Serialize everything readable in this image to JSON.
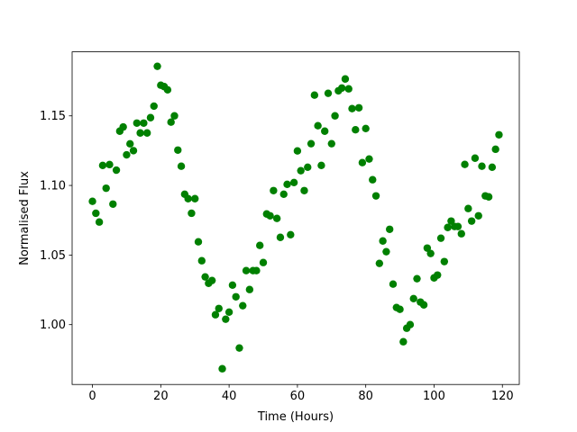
{
  "chart_data": {
    "type": "scatter",
    "xlabel": "Time (Hours)",
    "ylabel": "Normalised Flux",
    "color": "#008000",
    "xlim": [
      -5.95,
      124.95
    ],
    "ylim": [
      0.957,
      1.196
    ],
    "xticks": [
      0,
      20,
      40,
      60,
      80,
      100,
      120
    ],
    "yticks": [
      {
        "value": 1.0,
        "label": "1.00"
      },
      1.05,
      {
        "value": 1.1,
        "label": "1.10"
      },
      1.15
    ],
    "grid": false,
    "x": [
      0,
      1,
      2,
      3,
      4,
      5,
      6,
      7,
      8,
      9,
      10,
      11,
      12,
      13,
      14,
      15,
      16,
      17,
      18,
      19,
      20,
      21,
      22,
      23,
      24,
      25,
      26,
      27,
      28,
      29,
      30,
      31,
      32,
      33,
      34,
      35,
      36,
      37,
      38,
      39,
      40,
      41,
      42,
      43,
      44,
      45,
      46,
      47,
      48,
      49,
      50,
      51,
      52,
      53,
      54,
      55,
      56,
      57,
      58,
      59,
      60,
      61,
      62,
      63,
      64,
      65,
      66,
      67,
      68,
      69,
      70,
      71,
      72,
      73,
      74,
      75,
      76,
      77,
      78,
      79,
      80,
      81,
      82,
      83,
      84,
      85,
      86,
      87,
      88,
      89,
      90,
      91,
      92,
      93,
      94,
      95,
      96,
      97,
      98,
      99,
      100,
      101,
      102,
      103,
      104,
      105,
      106,
      107,
      108,
      109,
      110,
      111,
      112,
      113,
      114,
      115,
      116,
      117,
      118,
      119
    ],
    "values": [
      1.0886,
      1.08,
      1.0737,
      1.1144,
      1.098,
      1.115,
      1.0866,
      1.111,
      1.139,
      1.142,
      1.122,
      1.1299,
      1.125,
      1.1448,
      1.1377,
      1.1448,
      1.1377,
      1.1487,
      1.157,
      1.1856,
      1.172,
      1.171,
      1.1687,
      1.1455,
      1.15,
      1.1254,
      1.1138,
      1.0937,
      1.0905,
      1.08,
      1.0905,
      1.0595,
      1.0459,
      1.0343,
      1.0297,
      1.0317,
      1.0071,
      1.0116,
      0.9683,
      1.0039,
      1.009,
      1.0284,
      1.02,
      0.9832,
      1.0136,
      1.0388,
      1.0252,
      1.0388,
      1.0388,
      1.0569,
      1.0446,
      1.0795,
      1.0782,
      1.0963,
      1.0763,
      1.0627,
      1.0937,
      1.1008,
      1.0646,
      1.1021,
      1.1248,
      1.1106,
      1.0963,
      1.1131,
      1.13,
      1.1649,
      1.1429,
      1.1144,
      1.139,
      1.1662,
      1.13,
      1.15,
      1.168,
      1.17,
      1.1765,
      1.1694,
      1.1552,
      1.14,
      1.1558,
      1.1164,
      1.1409,
      1.119,
      1.1041,
      1.0925,
      1.044,
      1.0601,
      1.0524,
      1.0685,
      1.0291,
      1.0123,
      1.011,
      0.9877,
      0.9974,
      1.0,
      1.0187,
      1.033,
      1.0162,
      1.0142,
      1.055,
      1.0511,
      1.0336,
      1.0356,
      1.0621,
      1.0453,
      1.0698,
      1.0744,
      1.0705,
      1.0705,
      1.0653,
      1.1151,
      1.0834,
      1.0744,
      1.1196,
      1.0782,
      1.1138,
      1.0925,
      1.0918,
      1.1131,
      1.126,
      1.1364
    ]
  }
}
